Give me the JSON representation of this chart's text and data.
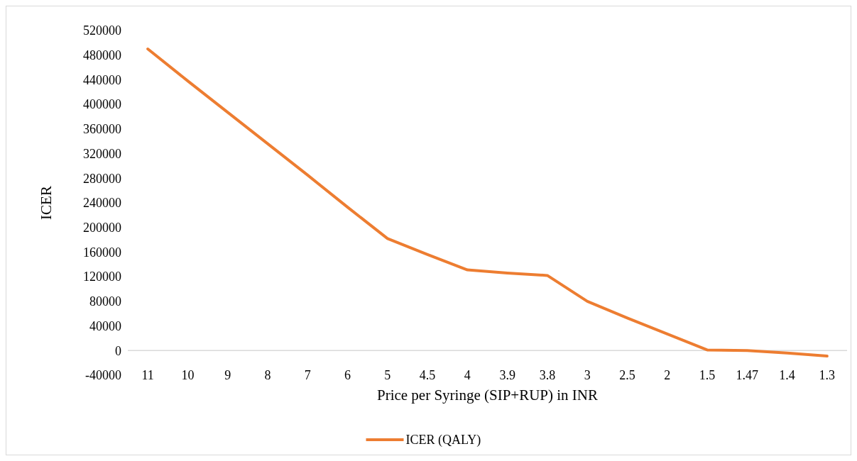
{
  "chart_data": {
    "type": "line",
    "xlabel": "Price per Syringe (SIP+RUP) in INR",
    "ylabel": "ICER",
    "categories": [
      "11",
      "10",
      "9",
      "8",
      "7",
      "6",
      "5",
      "4.5",
      "4",
      "3.9",
      "3.8",
      "3",
      "2.5",
      "2",
      "1.5",
      "1.47",
      "1.4",
      "1.3"
    ],
    "series": [
      {
        "name": "ICER (QALY)",
        "color": "#ed7d31",
        "values": [
          490000,
          438000,
          387000,
          336000,
          285000,
          233000,
          182000,
          156000,
          131000,
          126000,
          122000,
          80000,
          53000,
          27000,
          1000,
          0,
          -4000,
          -9000
        ]
      }
    ],
    "ylim": [
      -40000,
      520000
    ],
    "yticks": [
      -40000,
      0,
      40000,
      80000,
      120000,
      160000,
      200000,
      240000,
      280000,
      320000,
      360000,
      400000,
      440000,
      480000,
      520000
    ],
    "grid": false,
    "legend": "bottom",
    "marker": "none",
    "line_style": "solid"
  }
}
